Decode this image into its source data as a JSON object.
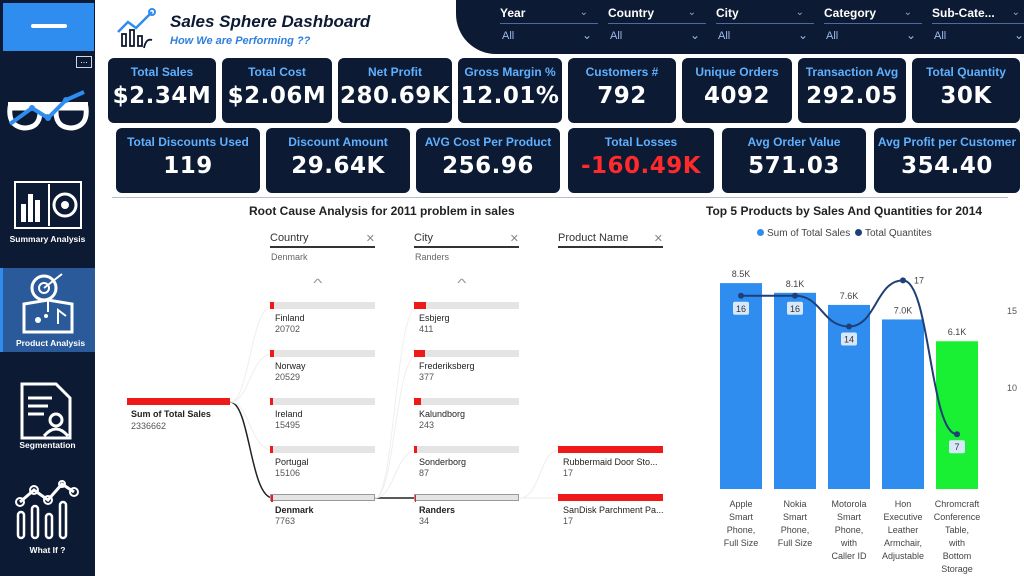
{
  "header": {
    "title": "Sales Sphere Dashboard",
    "subtitle": "How We are Performing ??"
  },
  "filters": [
    {
      "label": "Year",
      "value": "All"
    },
    {
      "label": "Country",
      "value": "All"
    },
    {
      "label": "City",
      "value": "All"
    },
    {
      "label": "Category",
      "value": "All"
    },
    {
      "label": "Sub-Cate...",
      "value": "All"
    }
  ],
  "sidebar": {
    "more_label": "...",
    "items": [
      {
        "label": "Summary Analysis",
        "icon": "summary-chart-icon"
      },
      {
        "label": "Product Analysis",
        "icon": "product-box-icon"
      },
      {
        "label": "Segmentation",
        "icon": "segmentation-doc-icon"
      },
      {
        "label": "What If ?",
        "icon": "what-if-chart-icon"
      }
    ]
  },
  "kpis_row1": [
    {
      "label": "Total Sales",
      "value": "$2.34M"
    },
    {
      "label": "Total Cost",
      "value": "$2.06M"
    },
    {
      "label": "Net Profit",
      "value": "280.69K"
    },
    {
      "label": "Gross Margin %",
      "value": "12.01%"
    },
    {
      "label": "Customers #",
      "value": "792"
    },
    {
      "label": "Unique Orders",
      "value": "4092"
    },
    {
      "label": "Transaction Avg",
      "value": "292.05"
    },
    {
      "label": "Total Quantity",
      "value": "30K"
    }
  ],
  "kpis_row2": [
    {
      "label": "Total Discounts Used",
      "value": "119"
    },
    {
      "label": "Discount Amount",
      "value": "29.64K"
    },
    {
      "label": "AVG Cost Per Product",
      "value": "256.96"
    },
    {
      "label": "Total Losses",
      "value": "-160.49K"
    },
    {
      "label": "Avg Order Value",
      "value": "571.03"
    },
    {
      "label": "Avg Profit per Customer",
      "value": "354.40"
    }
  ],
  "decomposition": {
    "title": "Root Cause Analysis for 2011 problem in sales",
    "root": {
      "label": "Sum of Total Sales",
      "value": "2336662"
    },
    "columns": [
      {
        "header": "Country",
        "selected": "Denmark"
      },
      {
        "header": "City",
        "selected": "Randers"
      },
      {
        "header": "Product Name",
        "selected": ""
      }
    ],
    "country_items": [
      {
        "name": "Finland",
        "value": "20702"
      },
      {
        "name": "Norway",
        "value": "20529"
      },
      {
        "name": "Ireland",
        "value": "15495"
      },
      {
        "name": "Portugal",
        "value": "15106"
      },
      {
        "name": "Denmark",
        "value": "7763"
      }
    ],
    "city_items": [
      {
        "name": "Esbjerg",
        "value": "411"
      },
      {
        "name": "Frederiksberg",
        "value": "377"
      },
      {
        "name": "Kalundborg",
        "value": "243"
      },
      {
        "name": "Sonderborg",
        "value": "87"
      },
      {
        "name": "Randers",
        "value": "34"
      }
    ],
    "product_items": [
      {
        "name": "Rubbermaid Door Sto...",
        "value": "17"
      },
      {
        "name": "SanDisk Parchment Pa...",
        "value": "17"
      }
    ]
  },
  "colors": {
    "navy": "#0d1a33",
    "accent": "#2f8df0",
    "negative": "#ff2a2a",
    "bar_red": "#ee1a1a",
    "bar_green": "#19f034"
  },
  "chart_data": {
    "type": "bar",
    "title": "Top 5 Products by Sales And Quantities for 2014",
    "categories": [
      "Apple Smart Phone, Full Size",
      "Nokia Smart Phone, Full Size",
      "Motorola Smart Phone, with Caller ID",
      "Hon Executive Leather Armchair, Adjustable",
      "Chromcraft Conference Table, with Bottom Storage"
    ],
    "series": [
      {
        "name": "Sum of Total Sales",
        "type": "bar",
        "values": [
          8500,
          8100,
          7600,
          7000,
          6100
        ],
        "labels": [
          "8.5K",
          "8.1K",
          "7.6K",
          "7.0K",
          "6.1K"
        ],
        "color": "#2f8df0"
      },
      {
        "name": "Total Quantites",
        "type": "line",
        "values": [
          16,
          16,
          14,
          17,
          7
        ],
        "labels": [
          "16",
          "16",
          "14",
          "17",
          "7"
        ],
        "color": "#1f3f78"
      }
    ],
    "y2_ticks": [
      "15",
      "10"
    ],
    "y2_range": [
      5,
      18
    ],
    "y_range": [
      0,
      9000
    ],
    "highlight_color": "#19f034"
  }
}
